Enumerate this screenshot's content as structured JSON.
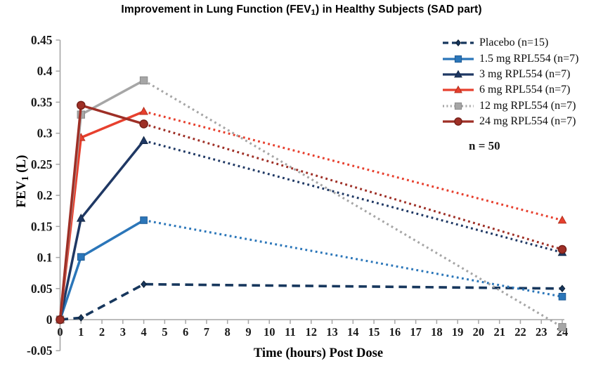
{
  "title": {
    "pre": "Improvement in Lung Function (FEV",
    "sub": "1",
    "post": ") in Healthy Subjects (SAD part)"
  },
  "annotation": "n = 50",
  "axis": {
    "xlabel": "Time (hours) Post Dose",
    "ylabel_pre": "FEV",
    "ylabel_sub": "1",
    "ylabel_post": " (L)",
    "axis_color": "#a6a6a6",
    "tick_text_color": "#1a1a1a"
  },
  "chart_data": {
    "type": "line",
    "title": "Improvement in Lung Function (FEV1) in Healthy Subjects (SAD part)",
    "xlabel": "Time (hours) Post Dose",
    "ylabel": "FEV1 (L)",
    "x": [
      0,
      1,
      4,
      24
    ],
    "xlim": [
      0,
      24
    ],
    "ylim": [
      -0.05,
      0.45
    ],
    "x_ticks": [
      0,
      1,
      2,
      3,
      4,
      5,
      6,
      7,
      8,
      9,
      10,
      11,
      12,
      13,
      14,
      15,
      16,
      17,
      18,
      19,
      20,
      21,
      22,
      23,
      24
    ],
    "y_ticks": [
      {
        "v": 0.45,
        "label": "0.45"
      },
      {
        "v": 0.4,
        "label": "0.4"
      },
      {
        "v": 0.35,
        "label": "0.35"
      },
      {
        "v": 0.3,
        "label": "0.3"
      },
      {
        "v": 0.25,
        "label": "0.25"
      },
      {
        "v": 0.2,
        "label": "0.2"
      },
      {
        "v": 0.15,
        "label": "0.15"
      },
      {
        "v": 0.1,
        "label": "0.1"
      },
      {
        "v": 0.05,
        "label": "0.05"
      },
      {
        "v": 0,
        "label": "0"
      },
      {
        "v": -0.05,
        "label": "-0.05"
      }
    ],
    "grid": false,
    "legend_position": "top-right",
    "line_style_note": "solid 0-4h then dotted 4-24h for dose groups; placebo dashed throughout",
    "series": [
      {
        "name": "Placebo (n=15)",
        "color": "#17375d",
        "edge": "#0c1d31",
        "marker": "diamond",
        "dash": "dashed",
        "values": [
          0,
          0.003,
          0.057,
          0.05
        ]
      },
      {
        "name": "1.5 mg RPL554 (n=7)",
        "color": "#2b76b9",
        "edge": "#1d5a94",
        "marker": "square",
        "dash": "solid",
        "values": [
          0,
          0.101,
          0.16,
          0.037
        ]
      },
      {
        "name": "3 mg RPL554 (n=7)",
        "color": "#1f3864",
        "edge": "#142947",
        "marker": "triangle",
        "dash": "solid",
        "values": [
          0,
          0.163,
          0.288,
          0.108
        ]
      },
      {
        "name": "6 mg RPL554 (n=7)",
        "color": "#e7402e",
        "edge": "#b5301f",
        "marker": "triangle",
        "dash": "solid",
        "values": [
          0,
          0.293,
          0.335,
          0.16
        ]
      },
      {
        "name": "12 mg RPL554 (n=7)",
        "color": "#a6a6a6",
        "edge": "#8a8a8a",
        "marker": "square",
        "dash": "dotted",
        "values": [
          0,
          0.33,
          0.385,
          -0.012
        ]
      },
      {
        "name": "24 mg RPL554 (n=7)",
        "color": "#9e2f26",
        "edge": "#741f18",
        "marker": "circle",
        "dash": "solid",
        "values": [
          0,
          0.345,
          0.315,
          0.113
        ]
      }
    ]
  }
}
